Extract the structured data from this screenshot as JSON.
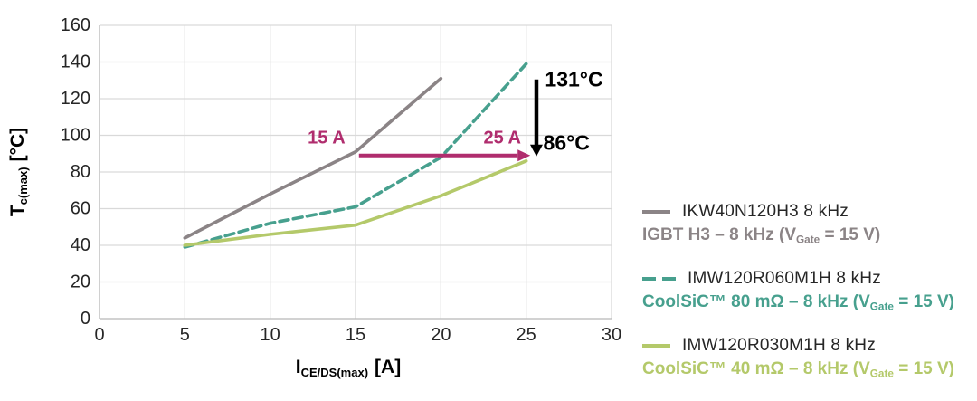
{
  "chart_data": {
    "type": "line",
    "title": "",
    "x": {
      "label_main": "I",
      "label_sub": "CE/DS(max)",
      "label_unit": "[A]",
      "ticks": [
        0,
        5,
        10,
        15,
        20,
        25,
        30
      ],
      "range": [
        0,
        30
      ]
    },
    "y": {
      "label_main": "T",
      "label_sub": "c(max)",
      "label_unit": "[°C]",
      "ticks": [
        0,
        20,
        40,
        60,
        80,
        100,
        120,
        140,
        160
      ],
      "range": [
        0,
        160
      ]
    },
    "grid": true,
    "legend_position": "right",
    "series": [
      {
        "name": "IKW40N120H3 8 kHz",
        "color": "#8b8486",
        "style": "solid",
        "points": [
          [
            5,
            44
          ],
          [
            10,
            68
          ],
          [
            15,
            91
          ],
          [
            20,
            131
          ]
        ]
      },
      {
        "name": "IMW120R060M1H 8 kHz",
        "color": "#47a08e",
        "style": "dashed",
        "points": [
          [
            5,
            39
          ],
          [
            10,
            52
          ],
          [
            15,
            61
          ],
          [
            20,
            88
          ],
          [
            25,
            139
          ]
        ]
      },
      {
        "name": "IMW120R030M1H 8 kHz",
        "color": "#b4c96a",
        "style": "solid",
        "points": [
          [
            5,
            40
          ],
          [
            10,
            46
          ],
          [
            15,
            51
          ],
          [
            20,
            67
          ],
          [
            25,
            86
          ]
        ]
      }
    ],
    "annotations": {
      "label_15a": {
        "text": "15 A",
        "color": "#b02d6e",
        "x": 13.3,
        "y": 99
      },
      "label_25a": {
        "text": "25 A",
        "color": "#b02d6e",
        "x": 23.6,
        "y": 99
      },
      "h_arrow": {
        "from_x": 15.2,
        "to_x": 24.5,
        "y": 89,
        "color": "#b02d6e"
      },
      "v_arrow": {
        "x": 25.6,
        "from_y": 130.5,
        "to_y": 88.5,
        "color": "#000000"
      },
      "label_131": {
        "text": "131°C",
        "color": "#000000",
        "x": 26.1,
        "y": 130.5
      },
      "label_86": {
        "text": "86°C",
        "color": "#000000",
        "x": 26.0,
        "y": 96
      }
    }
  },
  "legend": {
    "items": [
      {
        "label": "IKW40N120H3 8 kHz",
        "dash": "solid",
        "color": "#8b8486",
        "sub_color": "#8b8486",
        "sub_prefix": "IGBT H3 – 8 kHz (V",
        "sub_sub": "Gate",
        "sub_suffix": " = 15 V)"
      },
      {
        "label": "IMW120R060M1H 8 kHz",
        "dash": "dashed",
        "color": "#47a08e",
        "sub_color": "#47a08e",
        "sub_prefix": "CoolSiC™ 80 mΩ – 8 kHz (V",
        "sub_sub": "Gate",
        "sub_suffix": " = 15 V)"
      },
      {
        "label": "IMW120R030M1H 8 kHz",
        "dash": "solid",
        "color": "#b4c96a",
        "sub_color": "#b4c96a",
        "sub_prefix": "CoolSiC™ 40 mΩ – 8 kHz (V",
        "sub_sub": "Gate",
        "sub_suffix": " = 15 V)"
      }
    ]
  },
  "colors": {
    "gridline": "#d9d9d9",
    "axis_line": "#b7b7b7",
    "tick_label": "#262626"
  }
}
